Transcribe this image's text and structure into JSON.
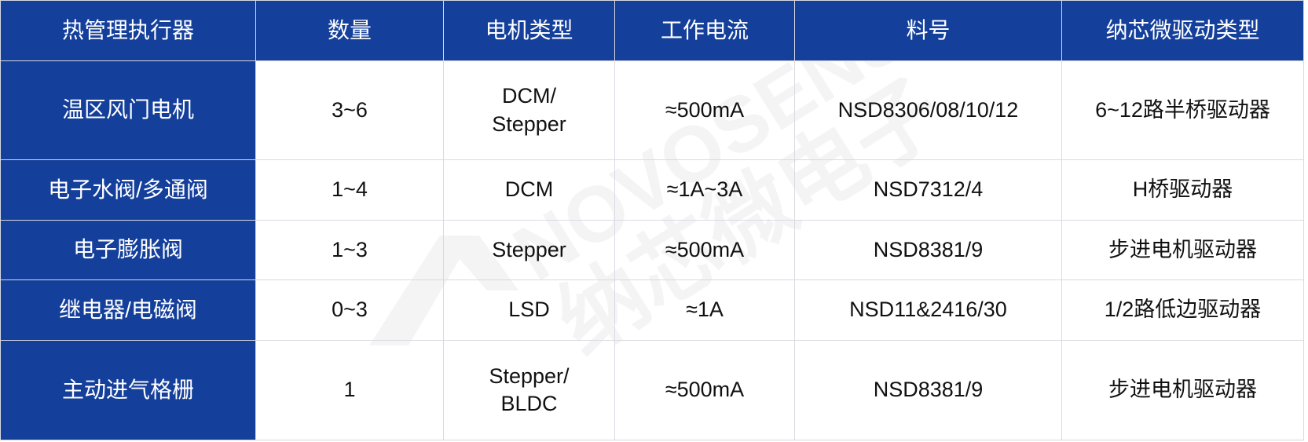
{
  "table": {
    "headers": [
      "热管理执行器",
      "数量",
      "电机类型",
      "工作电流",
      "料号",
      "纳芯微驱动类型"
    ],
    "rows": [
      [
        "温区风门电机",
        "3~6",
        "DCM/\nStepper",
        "≈500mA",
        "NSD8306/08/10/12",
        "6~12路半桥驱动器"
      ],
      [
        "电子水阀/多通阀",
        "1~4",
        "DCM",
        "≈1A~3A",
        "NSD7312/4",
        "H桥驱动器"
      ],
      [
        "电子膨胀阀",
        "1~3",
        "Stepper",
        "≈500mA",
        "NSD8381/9",
        "步进电机驱动器"
      ],
      [
        "继电器/电磁阀",
        "0~3",
        "LSD",
        "≈1A",
        "NSD11&2416/30",
        "1/2路低边驱动器"
      ],
      [
        "主动进气格栅",
        "1",
        "Stepper/\nBLDC",
        "≈500mA",
        "NSD8381/9",
        "步进电机驱动器"
      ]
    ]
  },
  "watermark": {
    "text_en": "NOVOSENSE",
    "text_cn": "纳芯微电子"
  },
  "colors": {
    "header_bg": "#143f9b",
    "header_text": "#ffffff",
    "border": "#d9d9e2"
  }
}
